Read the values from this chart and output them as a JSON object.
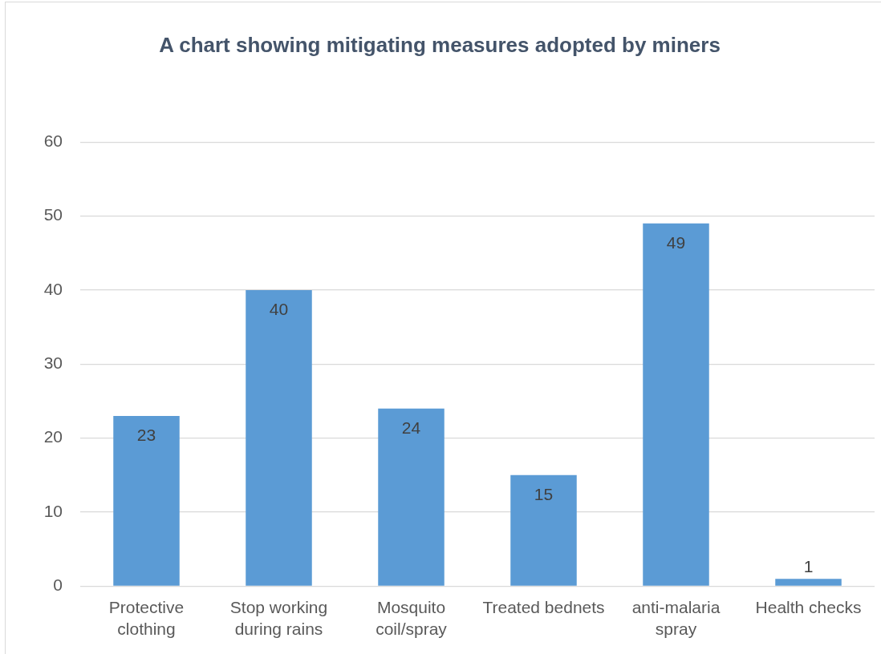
{
  "chart_data": {
    "type": "bar",
    "title": "A chart showing mitigating measures adopted by miners",
    "categories": [
      "Protective clothing",
      "Stop working during rains",
      "Mosquito coil/spray",
      "Treated bednets",
      "anti-malaria spray",
      "Health checks"
    ],
    "values": [
      23,
      40,
      24,
      15,
      49,
      1
    ],
    "color": "#5b9bd5",
    "ylim": [
      0,
      60
    ],
    "yticks": [
      0,
      10,
      20,
      30,
      40,
      50,
      60
    ],
    "grid": "y",
    "data_labels": true,
    "legend": false
  }
}
